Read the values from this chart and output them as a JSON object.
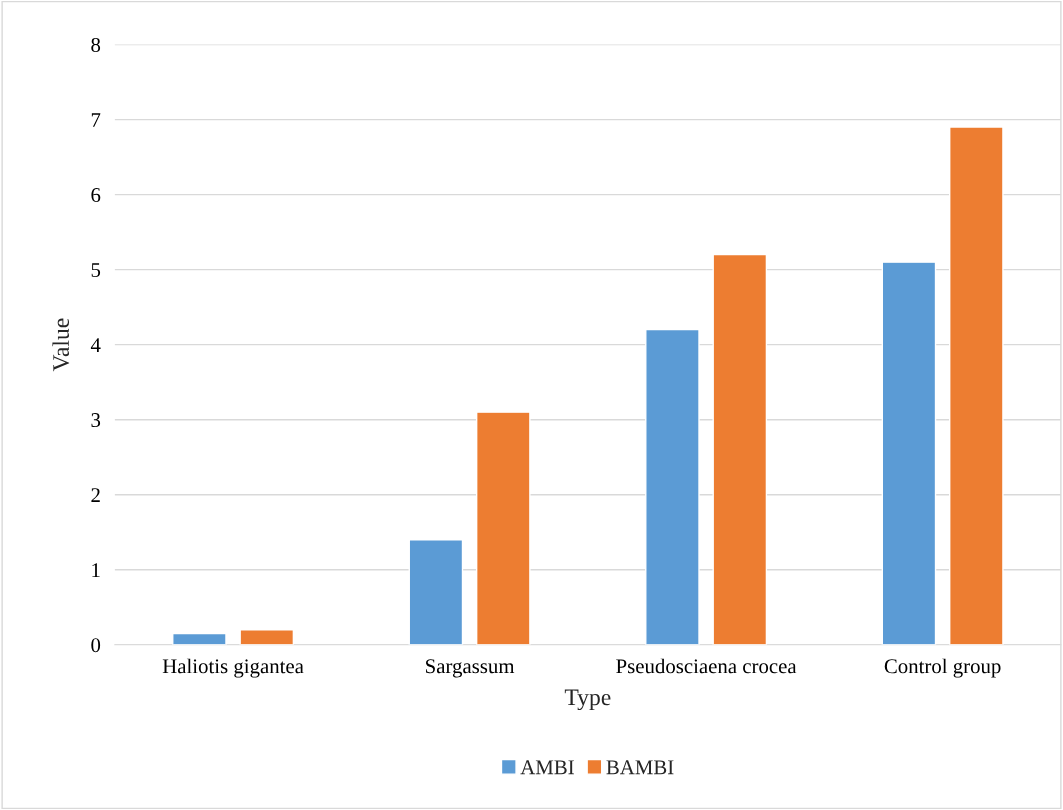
{
  "chart_data": {
    "type": "bar",
    "xlabel": "Type",
    "ylabel": "Value",
    "categories": [
      "Haliotis gigantea",
      "Sargassum",
      "Pseudosciaena crocea",
      "Control group"
    ],
    "series": [
      {
        "name": "AMBI",
        "color": "#5b9bd5",
        "values": [
          0.15,
          1.4,
          4.2,
          5.1
        ]
      },
      {
        "name": "BAMBI",
        "color": "#ed7d31",
        "values": [
          0.2,
          3.1,
          5.2,
          6.9
        ]
      }
    ],
    "ylim": [
      0,
      8
    ],
    "yticks": [
      0,
      1,
      2,
      3,
      4,
      5,
      6,
      7,
      8
    ],
    "grid": "y",
    "legend": "bottom"
  }
}
